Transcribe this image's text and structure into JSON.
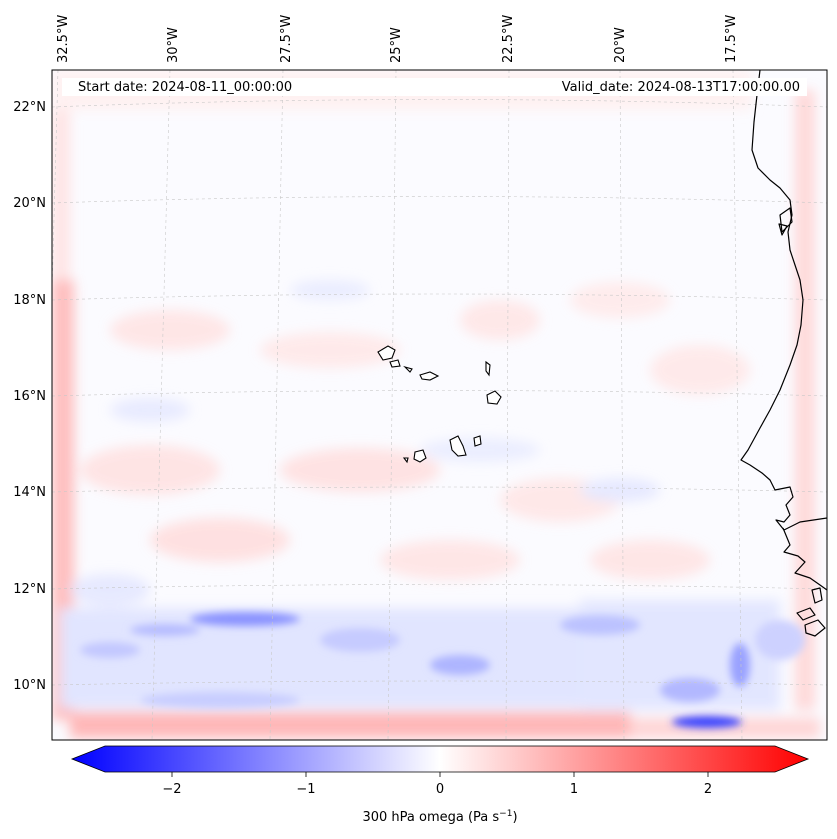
{
  "header": {
    "start_label": "Start date: 2024-08-11_00:00:00",
    "valid_label": "Valid_date: 2024-08-13T17:00:00.00"
  },
  "map": {
    "lon_labels": [
      "32.5°W",
      "30°W",
      "27.5°W",
      "25°W",
      "22.5°W",
      "20°W",
      "17.5°W"
    ],
    "lat_labels": [
      "22°N",
      "20°N",
      "18°N",
      "16°N",
      "14°N",
      "12°N",
      "10°N"
    ]
  },
  "colorbar": {
    "ticks": [
      "−2",
      "−1",
      "0",
      "1",
      "2"
    ],
    "tick_values": [
      -2,
      -1,
      0,
      1,
      2
    ],
    "range": [
      -2.7,
      2.7
    ],
    "label_main": "300 hPa omega (Pa s",
    "label_sup": "−1",
    "label_end": ")",
    "negative_color": "#0000ff",
    "positive_color": "#ff0000"
  }
}
